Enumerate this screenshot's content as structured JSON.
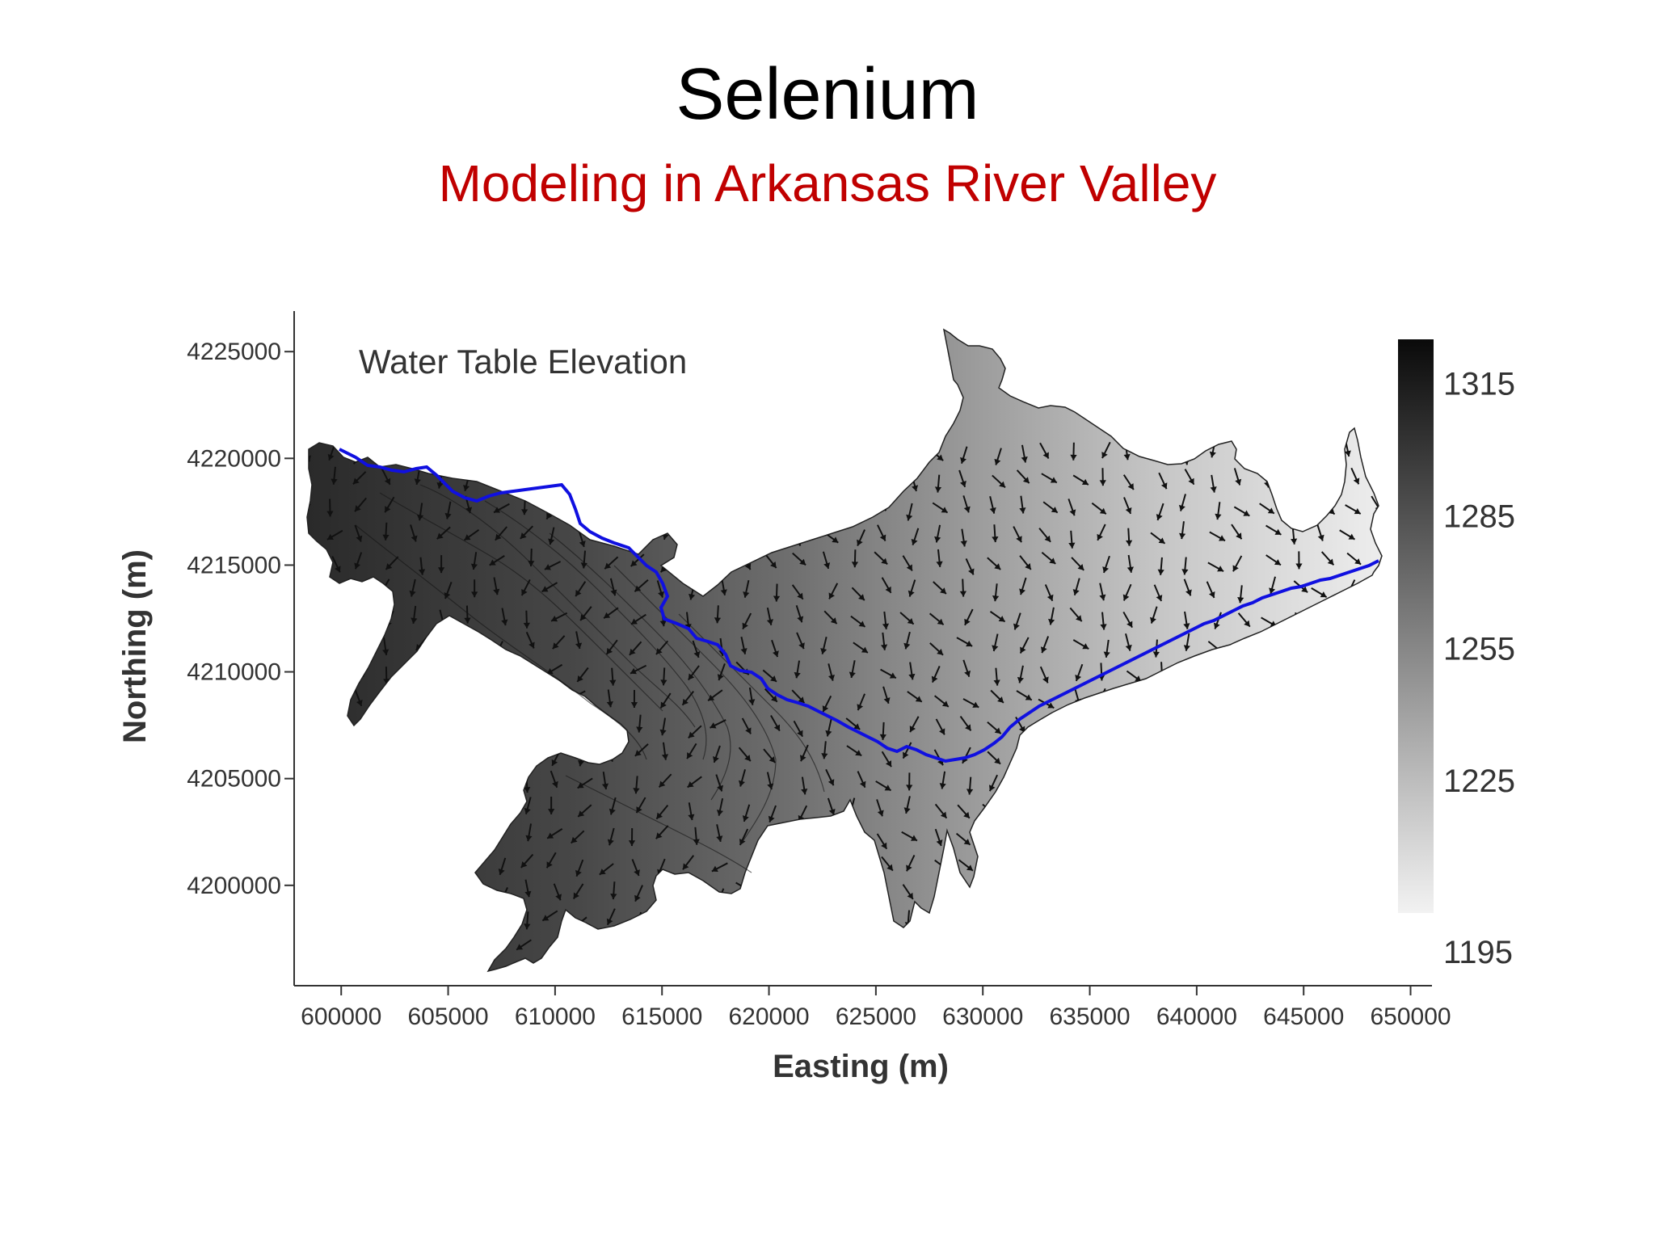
{
  "slide": {
    "title": "Selenium",
    "subtitle": "Modeling in Arkansas River Valley"
  },
  "map": {
    "label": "Water Table Elevation",
    "x_axis": {
      "title": "Easting (m)",
      "ticks": [
        "600000",
        "605000",
        "610000",
        "615000",
        "620000",
        "625000",
        "630000",
        "635000",
        "640000",
        "645000",
        "650000"
      ],
      "range": [
        597800,
        651000
      ]
    },
    "y_axis": {
      "title": "Northing (m)",
      "ticks": [
        "4225000",
        "4220000",
        "4215000",
        "4210000",
        "4205000",
        "4200000"
      ],
      "range": [
        4195300,
        4226900
      ]
    },
    "colorbar": {
      "ticks": [
        "1315",
        "1285",
        "1255",
        "1225",
        "1195"
      ],
      "range": [
        1195,
        1325
      ],
      "color_high": "#0a0a0a",
      "color_low": "#f2f2f2"
    },
    "river_color": "#1010e0",
    "arrow_color": "#111111"
  }
}
